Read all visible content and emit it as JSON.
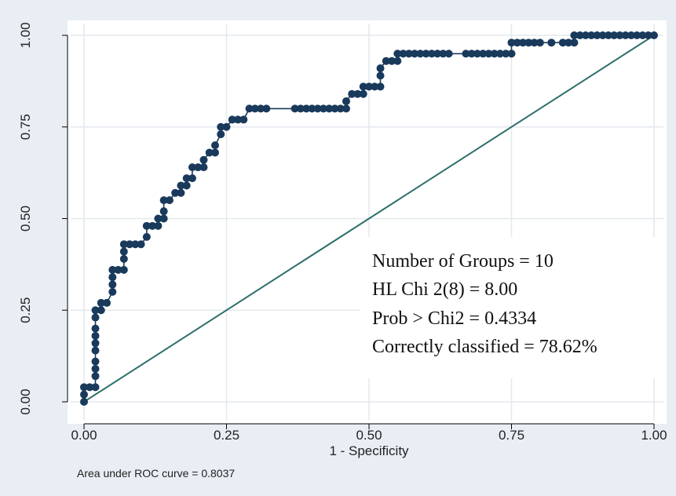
{
  "chart_data": {
    "type": "line",
    "xlabel": "1 - Specificity",
    "ylabel": "",
    "xlim": [
      0,
      1
    ],
    "ylim": [
      0,
      1
    ],
    "x_ticks": [
      "0.00",
      "0.25",
      "0.50",
      "0.75",
      "1.00"
    ],
    "y_ticks": [
      "0.00",
      "0.25",
      "0.50",
      "0.75",
      "1.00"
    ],
    "grid": true,
    "footnote": "Area under ROC curve = 0.8037",
    "annotations": [
      "Number of Groups = 10",
      "HL Chi 2(8) = 8.00",
      "Prob > Chi2 = 0.4334",
      "Correctly classified = 78.62%"
    ],
    "colors": {
      "roc": "#1a3a5c",
      "reference": "#2e6f6b",
      "background": "#e8eef3",
      "plot_background": "#ffffff"
    },
    "series": [
      {
        "type": "line",
        "points": [
          [
            0,
            0
          ],
          [
            0,
            0.02
          ],
          [
            0,
            0.04
          ],
          [
            0.01,
            0.04
          ],
          [
            0.02,
            0.04
          ],
          [
            0.02,
            0.07
          ],
          [
            0.02,
            0.09
          ],
          [
            0.02,
            0.11
          ],
          [
            0.02,
            0.14
          ],
          [
            0.02,
            0.16
          ],
          [
            0.02,
            0.18
          ],
          [
            0.02,
            0.2
          ],
          [
            0.02,
            0.23
          ],
          [
            0.02,
            0.25
          ],
          [
            0.03,
            0.25
          ],
          [
            0.03,
            0.27
          ],
          [
            0.04,
            0.27
          ],
          [
            0.05,
            0.3
          ],
          [
            0.05,
            0.32
          ],
          [
            0.05,
            0.34
          ],
          [
            0.05,
            0.36
          ],
          [
            0.06,
            0.36
          ],
          [
            0.07,
            0.36
          ],
          [
            0.07,
            0.39
          ],
          [
            0.07,
            0.41
          ],
          [
            0.07,
            0.43
          ],
          [
            0.08,
            0.43
          ],
          [
            0.09,
            0.43
          ],
          [
            0.1,
            0.43
          ],
          [
            0.11,
            0.45
          ],
          [
            0.11,
            0.48
          ],
          [
            0.12,
            0.48
          ],
          [
            0.13,
            0.48
          ],
          [
            0.13,
            0.5
          ],
          [
            0.14,
            0.5
          ],
          [
            0.14,
            0.52
          ],
          [
            0.14,
            0.55
          ],
          [
            0.15,
            0.55
          ],
          [
            0.16,
            0.57
          ],
          [
            0.17,
            0.57
          ],
          [
            0.17,
            0.59
          ],
          [
            0.18,
            0.59
          ],
          [
            0.18,
            0.61
          ],
          [
            0.19,
            0.61
          ],
          [
            0.19,
            0.64
          ],
          [
            0.2,
            0.64
          ],
          [
            0.21,
            0.64
          ],
          [
            0.21,
            0.66
          ],
          [
            0.22,
            0.68
          ],
          [
            0.23,
            0.68
          ],
          [
            0.23,
            0.7
          ],
          [
            0.24,
            0.73
          ],
          [
            0.24,
            0.75
          ],
          [
            0.25,
            0.75
          ],
          [
            0.26,
            0.77
          ],
          [
            0.27,
            0.77
          ],
          [
            0.28,
            0.77
          ],
          [
            0.29,
            0.8
          ],
          [
            0.3,
            0.8
          ],
          [
            0.31,
            0.8
          ],
          [
            0.32,
            0.8
          ],
          [
            0.37,
            0.8
          ],
          [
            0.38,
            0.8
          ],
          [
            0.39,
            0.8
          ],
          [
            0.4,
            0.8
          ],
          [
            0.41,
            0.8
          ],
          [
            0.42,
            0.8
          ],
          [
            0.43,
            0.8
          ],
          [
            0.44,
            0.8
          ],
          [
            0.45,
            0.8
          ],
          [
            0.46,
            0.8
          ],
          [
            0.46,
            0.82
          ],
          [
            0.47,
            0.84
          ],
          [
            0.48,
            0.84
          ],
          [
            0.49,
            0.84
          ],
          [
            0.49,
            0.86
          ],
          [
            0.5,
            0.86
          ],
          [
            0.51,
            0.86
          ],
          [
            0.52,
            0.86
          ],
          [
            0.52,
            0.89
          ],
          [
            0.52,
            0.91
          ],
          [
            0.53,
            0.93
          ],
          [
            0.54,
            0.93
          ],
          [
            0.55,
            0.93
          ],
          [
            0.55,
            0.95
          ],
          [
            0.56,
            0.95
          ],
          [
            0.57,
            0.95
          ],
          [
            0.58,
            0.95
          ],
          [
            0.59,
            0.95
          ],
          [
            0.6,
            0.95
          ],
          [
            0.61,
            0.95
          ],
          [
            0.62,
            0.95
          ],
          [
            0.63,
            0.95
          ],
          [
            0.64,
            0.95
          ],
          [
            0.67,
            0.95
          ],
          [
            0.68,
            0.95
          ],
          [
            0.69,
            0.95
          ],
          [
            0.7,
            0.95
          ],
          [
            0.71,
            0.95
          ],
          [
            0.72,
            0.95
          ],
          [
            0.73,
            0.95
          ],
          [
            0.74,
            0.95
          ],
          [
            0.75,
            0.95
          ],
          [
            0.75,
            0.98
          ],
          [
            0.76,
            0.98
          ],
          [
            0.77,
            0.98
          ],
          [
            0.78,
            0.98
          ],
          [
            0.79,
            0.98
          ],
          [
            0.8,
            0.98
          ],
          [
            0.82,
            0.98
          ],
          [
            0.84,
            0.98
          ],
          [
            0.85,
            0.98
          ],
          [
            0.86,
            0.98
          ],
          [
            0.86,
            1
          ],
          [
            0.87,
            1
          ],
          [
            0.88,
            1
          ],
          [
            0.89,
            1
          ],
          [
            0.9,
            1
          ],
          [
            0.91,
            1
          ],
          [
            0.92,
            1
          ],
          [
            0.93,
            1
          ],
          [
            0.94,
            1
          ],
          [
            0.95,
            1
          ],
          [
            0.96,
            1
          ],
          [
            0.97,
            1
          ],
          [
            0.98,
            1
          ],
          [
            0.99,
            1
          ],
          [
            1,
            1
          ]
        ]
      },
      {
        "type": "reference",
        "points": [
          [
            0,
            0
          ],
          [
            1,
            1
          ]
        ]
      }
    ]
  }
}
